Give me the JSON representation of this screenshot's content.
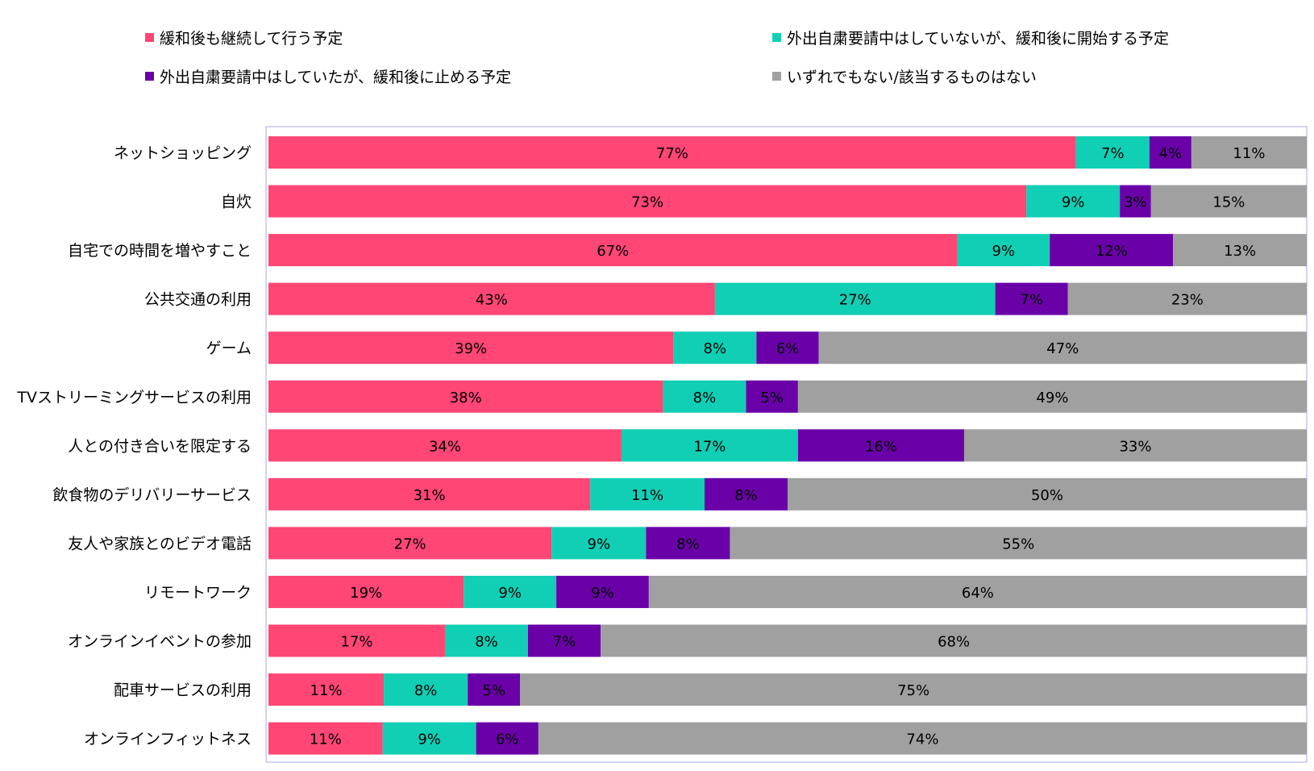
{
  "chart_data": {
    "type": "bar",
    "orientation": "horizontal",
    "stacked": true,
    "percent_stacked": true,
    "categories": [
      "ネットショッピング",
      "自炊",
      "自宅での時間を増やすこと",
      "公共交通の利用",
      "ゲーム",
      "TVストリーミングサービスの利用",
      "人との付き合いを限定する",
      "飲食物のデリバリーサービス",
      "友人や家族とのビデオ電話",
      "リモートワーク",
      "オンラインイベントの参加",
      "配車サービスの利用",
      "オンラインフィットネス"
    ],
    "series": [
      {
        "name": "緩和後も継続して行う予定",
        "color": "#ff4675",
        "values": [
          77,
          73,
          67,
          43,
          39,
          38,
          34,
          31,
          27,
          19,
          17,
          11,
          11
        ]
      },
      {
        "name": "外出自粛要請中はしていないが、緩和後に開始する予定",
        "color": "#10cfb4",
        "values": [
          7,
          9,
          9,
          27,
          8,
          8,
          17,
          11,
          9,
          9,
          8,
          8,
          9
        ]
      },
      {
        "name": "外出自粛要請中はしていたが、緩和後に止める予定",
        "color": "#6a00a8",
        "values": [
          4,
          3,
          12,
          7,
          6,
          5,
          16,
          8,
          8,
          9,
          7,
          5,
          6
        ]
      },
      {
        "name": "いずれでもない/該当するものはない",
        "color": "#a0a0a0",
        "values": [
          11,
          15,
          13,
          23,
          47,
          49,
          33,
          50,
          55,
          64,
          68,
          75,
          74
        ]
      }
    ],
    "value_suffix": "%",
    "legend_position": "top",
    "grid": false,
    "title": "",
    "xlabel": "",
    "ylabel": ""
  }
}
